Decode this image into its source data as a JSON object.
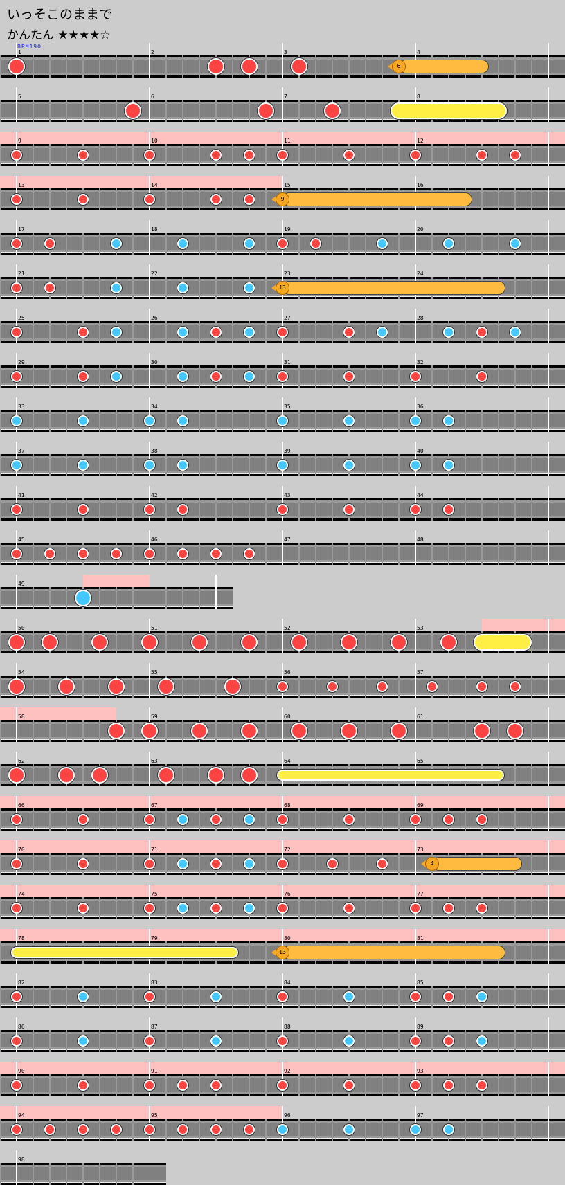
{
  "title": "いっそこのままで",
  "difficulty": {
    "label": "かんたん",
    "stars": "★★★★☆",
    "level": 4
  },
  "bpm_label": "BPM190",
  "colors": {
    "background": "#cccccc",
    "lane": "#808080",
    "gogo": "#ffc0c0",
    "don": "#ff4444",
    "ka": "#44c8ff",
    "roll": "#ffee44",
    "balloon": "#ffbb40"
  },
  "rows": [
    {
      "measures": [
        1,
        2,
        3,
        4
      ],
      "slots": 32,
      "gogo": [],
      "notes": [
        [
          "D",
          0
        ],
        [
          "D",
          12
        ],
        [
          "D",
          14
        ],
        [
          "D",
          17
        ]
      ],
      "rolls": [
        {
          "type": "balloon",
          "start": 23,
          "end": 28,
          "count": "6"
        }
      ]
    },
    {
      "measures": [
        5,
        6,
        7,
        8
      ],
      "slots": 32,
      "gogo": [],
      "notes": [
        [
          "D",
          7
        ],
        [
          "D",
          15
        ],
        [
          "D",
          19
        ]
      ],
      "rolls": [
        {
          "type": "ROLL",
          "start": 23,
          "end": 29
        }
      ]
    },
    {
      "measures": [
        9,
        10,
        11,
        12
      ],
      "slots": 32,
      "gogo": [
        [
          -1,
          33
        ]
      ],
      "notes": [
        [
          "d",
          0
        ],
        [
          "d",
          4
        ],
        [
          "d",
          8
        ],
        [
          "d",
          12
        ],
        [
          "d",
          14
        ],
        [
          "d",
          16
        ],
        [
          "d",
          20
        ],
        [
          "d",
          24
        ],
        [
          "d",
          28
        ],
        [
          "d",
          30
        ]
      ],
      "rolls": []
    },
    {
      "measures": [
        13,
        14,
        15,
        16
      ],
      "slots": 32,
      "gogo": [
        [
          -1,
          16
        ]
      ],
      "notes": [
        [
          "d",
          0
        ],
        [
          "d",
          4
        ],
        [
          "d",
          8
        ],
        [
          "d",
          12
        ],
        [
          "d",
          14
        ]
      ],
      "rolls": [
        {
          "type": "balloon",
          "start": 16,
          "end": 27,
          "count": "9"
        }
      ]
    },
    {
      "measures": [
        17,
        18,
        19,
        20
      ],
      "slots": 32,
      "gogo": [],
      "notes": [
        [
          "d",
          0
        ],
        [
          "d",
          2
        ],
        [
          "k",
          6
        ],
        [
          "k",
          10
        ],
        [
          "k",
          14
        ],
        [
          "d",
          16
        ],
        [
          "d",
          18
        ],
        [
          "k",
          22
        ],
        [
          "k",
          26
        ],
        [
          "k",
          30
        ]
      ],
      "rolls": []
    },
    {
      "measures": [
        21,
        22,
        23,
        24
      ],
      "slots": 32,
      "gogo": [],
      "notes": [
        [
          "d",
          0
        ],
        [
          "d",
          2
        ],
        [
          "k",
          6
        ],
        [
          "k",
          10
        ],
        [
          "k",
          14
        ]
      ],
      "rolls": [
        {
          "type": "balloon",
          "start": 16,
          "end": 29,
          "count": "13"
        }
      ]
    },
    {
      "measures": [
        25,
        26,
        27,
        28
      ],
      "slots": 32,
      "gogo": [],
      "notes": [
        [
          "d",
          0
        ],
        [
          "d",
          4
        ],
        [
          "k",
          6
        ],
        [
          "k",
          10
        ],
        [
          "d",
          12
        ],
        [
          "k",
          14
        ],
        [
          "d",
          16
        ],
        [
          "d",
          20
        ],
        [
          "k",
          22
        ],
        [
          "k",
          26
        ],
        [
          "d",
          28
        ],
        [
          "k",
          30
        ]
      ],
      "rolls": []
    },
    {
      "measures": [
        29,
        30,
        31,
        32
      ],
      "slots": 32,
      "gogo": [],
      "notes": [
        [
          "d",
          0
        ],
        [
          "d",
          4
        ],
        [
          "k",
          6
        ],
        [
          "k",
          10
        ],
        [
          "d",
          12
        ],
        [
          "k",
          14
        ],
        [
          "d",
          16
        ],
        [
          "d",
          20
        ],
        [
          "d",
          24
        ],
        [
          "d",
          28
        ]
      ],
      "rolls": []
    },
    {
      "measures": [
        33,
        34,
        35,
        36
      ],
      "slots": 32,
      "gogo": [],
      "notes": [
        [
          "k",
          0
        ],
        [
          "k",
          4
        ],
        [
          "k",
          8
        ],
        [
          "k",
          10
        ],
        [
          "k",
          16
        ],
        [
          "k",
          20
        ],
        [
          "k",
          24
        ],
        [
          "k",
          26
        ]
      ],
      "rolls": []
    },
    {
      "measures": [
        37,
        38,
        39,
        40
      ],
      "slots": 32,
      "gogo": [],
      "notes": [
        [
          "k",
          0
        ],
        [
          "k",
          4
        ],
        [
          "k",
          8
        ],
        [
          "k",
          10
        ],
        [
          "k",
          16
        ],
        [
          "k",
          20
        ],
        [
          "k",
          24
        ],
        [
          "k",
          26
        ]
      ],
      "rolls": []
    },
    {
      "measures": [
        41,
        42,
        43,
        44
      ],
      "slots": 32,
      "gogo": [],
      "notes": [
        [
          "d",
          0
        ],
        [
          "d",
          4
        ],
        [
          "d",
          8
        ],
        [
          "d",
          10
        ],
        [
          "d",
          16
        ],
        [
          "d",
          20
        ],
        [
          "d",
          24
        ],
        [
          "d",
          26
        ]
      ],
      "rolls": []
    },
    {
      "measures": [
        45,
        46,
        47,
        48
      ],
      "slots": 32,
      "gogo": [],
      "notes": [
        [
          "d",
          0
        ],
        [
          "d",
          2
        ],
        [
          "d",
          4
        ],
        [
          "d",
          6
        ],
        [
          "d",
          8
        ],
        [
          "d",
          10
        ],
        [
          "d",
          12
        ],
        [
          "d",
          14
        ]
      ],
      "rolls": []
    },
    {
      "measures": [
        49
      ],
      "slots": 12,
      "gogo": [
        [
          4,
          8
        ]
      ],
      "notes": [
        [
          "K",
          4
        ]
      ],
      "rolls": []
    },
    {
      "measures": [
        50,
        51,
        52,
        53
      ],
      "slots": 32,
      "gogo": [
        [
          28,
          33
        ]
      ],
      "notes": [
        [
          "D",
          0
        ],
        [
          "D",
          2
        ],
        [
          "D",
          5
        ],
        [
          "D",
          8
        ],
        [
          "D",
          11
        ],
        [
          "D",
          14
        ],
        [
          "D",
          17
        ],
        [
          "D",
          20
        ],
        [
          "D",
          23
        ],
        [
          "D",
          26
        ]
      ],
      "rolls": [
        {
          "type": "ROLL",
          "start": 28,
          "end": 30.5
        }
      ]
    },
    {
      "measures": [
        54,
        55,
        56,
        57
      ],
      "slots": 32,
      "gogo": [],
      "notes": [
        [
          "D",
          0
        ],
        [
          "D",
          3
        ],
        [
          "D",
          6
        ],
        [
          "D",
          9
        ],
        [
          "D",
          13
        ],
        [
          "d",
          16
        ],
        [
          "d",
          19
        ],
        [
          "d",
          22
        ],
        [
          "d",
          25
        ],
        [
          "d",
          28
        ],
        [
          "d",
          30
        ]
      ],
      "rolls": []
    },
    {
      "measures": [
        58,
        59,
        60,
        61
      ],
      "slots": 32,
      "gogo": [
        [
          -1,
          6
        ]
      ],
      "notes": [
        [
          "D",
          6
        ],
        [
          "D",
          8
        ],
        [
          "D",
          11
        ],
        [
          "D",
          14
        ],
        [
          "D",
          17
        ],
        [
          "D",
          20
        ],
        [
          "D",
          23
        ],
        [
          "D",
          28
        ],
        [
          "D",
          30
        ]
      ],
      "rolls": []
    },
    {
      "measures": [
        62,
        63,
        64,
        65
      ],
      "slots": 32,
      "gogo": [],
      "notes": [
        [
          "D",
          0
        ],
        [
          "D",
          3
        ],
        [
          "D",
          5
        ],
        [
          "D",
          9
        ],
        [
          "D",
          12
        ],
        [
          "D",
          14
        ]
      ],
      "rolls": [
        {
          "type": "roll",
          "start": 16,
          "end": 29
        }
      ]
    },
    {
      "measures": [
        66,
        67,
        68,
        69
      ],
      "slots": 32,
      "gogo": [
        [
          -1,
          33
        ]
      ],
      "notes": [
        [
          "d",
          0
        ],
        [
          "d",
          4
        ],
        [
          "d",
          8
        ],
        [
          "k",
          10
        ],
        [
          "d",
          12
        ],
        [
          "k",
          14
        ],
        [
          "d",
          16
        ],
        [
          "d",
          20
        ],
        [
          "d",
          24
        ],
        [
          "d",
          26
        ],
        [
          "d",
          28
        ]
      ],
      "rolls": []
    },
    {
      "measures": [
        70,
        71,
        72,
        73
      ],
      "slots": 32,
      "gogo": [
        [
          -1,
          33
        ]
      ],
      "notes": [
        [
          "d",
          0
        ],
        [
          "d",
          4
        ],
        [
          "d",
          8
        ],
        [
          "k",
          10
        ],
        [
          "d",
          12
        ],
        [
          "k",
          14
        ],
        [
          "d",
          16
        ],
        [
          "d",
          19
        ],
        [
          "d",
          22
        ]
      ],
      "rolls": [
        {
          "type": "balloon",
          "start": 25,
          "end": 30,
          "count": "4"
        }
      ]
    },
    {
      "measures": [
        74,
        75,
        76,
        77
      ],
      "slots": 32,
      "gogo": [
        [
          -1,
          33
        ]
      ],
      "notes": [
        [
          "d",
          0
        ],
        [
          "d",
          4
        ],
        [
          "d",
          8
        ],
        [
          "k",
          10
        ],
        [
          "d",
          12
        ],
        [
          "k",
          14
        ],
        [
          "d",
          16
        ],
        [
          "d",
          20
        ],
        [
          "d",
          24
        ],
        [
          "d",
          26
        ],
        [
          "d",
          28
        ]
      ],
      "rolls": []
    },
    {
      "measures": [
        78,
        79,
        80,
        81
      ],
      "slots": 32,
      "gogo": [
        [
          -1,
          33
        ]
      ],
      "notes": [],
      "rolls": [
        {
          "type": "roll",
          "start": 0,
          "end": 13
        },
        {
          "type": "balloon",
          "start": 16,
          "end": 29,
          "count": "13"
        }
      ]
    },
    {
      "measures": [
        82,
        83,
        84,
        85
      ],
      "slots": 32,
      "gogo": [],
      "notes": [
        [
          "d",
          0
        ],
        [
          "k",
          4
        ],
        [
          "d",
          8
        ],
        [
          "k",
          12
        ],
        [
          "d",
          16
        ],
        [
          "k",
          20
        ],
        [
          "d",
          24
        ],
        [
          "d",
          26
        ],
        [
          "k",
          28
        ]
      ],
      "rolls": []
    },
    {
      "measures": [
        86,
        87,
        88,
        89
      ],
      "slots": 32,
      "gogo": [],
      "notes": [
        [
          "d",
          0
        ],
        [
          "k",
          4
        ],
        [
          "d",
          8
        ],
        [
          "k",
          12
        ],
        [
          "d",
          16
        ],
        [
          "k",
          20
        ],
        [
          "d",
          24
        ],
        [
          "d",
          26
        ],
        [
          "k",
          28
        ]
      ],
      "rolls": []
    },
    {
      "measures": [
        90,
        91,
        92,
        93
      ],
      "slots": 32,
      "gogo": [
        [
          -1,
          33
        ]
      ],
      "notes": [
        [
          "d",
          0
        ],
        [
          "d",
          4
        ],
        [
          "d",
          8
        ],
        [
          "d",
          10
        ],
        [
          "d",
          12
        ],
        [
          "d",
          16
        ],
        [
          "d",
          20
        ],
        [
          "d",
          24
        ],
        [
          "d",
          26
        ],
        [
          "d",
          28
        ]
      ],
      "rolls": []
    },
    {
      "measures": [
        94,
        95,
        96,
        97
      ],
      "slots": 32,
      "gogo": [
        [
          -1,
          16
        ]
      ],
      "notes": [
        [
          "d",
          0
        ],
        [
          "d",
          2
        ],
        [
          "d",
          4
        ],
        [
          "d",
          6
        ],
        [
          "d",
          8
        ],
        [
          "d",
          10
        ],
        [
          "d",
          12
        ],
        [
          "d",
          14
        ],
        [
          "k",
          16
        ],
        [
          "k",
          20
        ],
        [
          "k",
          24
        ],
        [
          "k",
          26
        ]
      ],
      "rolls": []
    },
    {
      "measures": [
        98
      ],
      "slots": 8,
      "open_end": true,
      "gogo": [],
      "notes": [],
      "rolls": []
    }
  ]
}
